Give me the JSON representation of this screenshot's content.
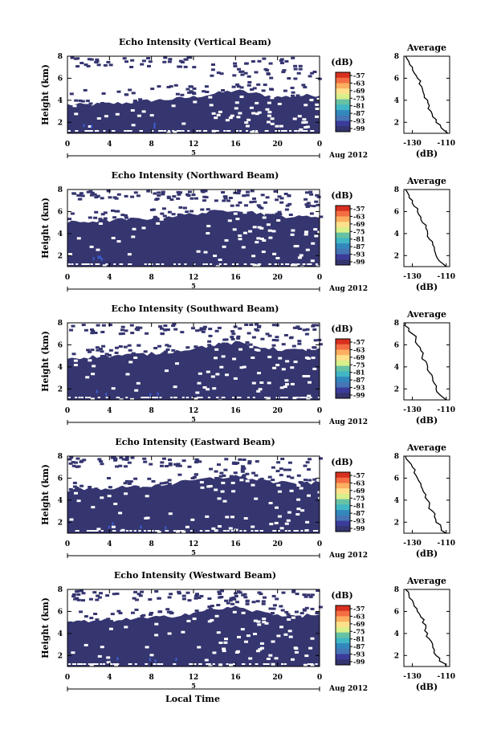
{
  "figure": {
    "x_axis_label": "Local Time",
    "date_label": "Aug 2012",
    "sub_axis_label": "5"
  },
  "colorbar": {
    "unit": "(dB)",
    "ticks": [
      "-57",
      "-63",
      "-69",
      "-75",
      "-81",
      "-87",
      "-93",
      "-99"
    ],
    "colors": [
      "#d7301f",
      "#f46d43",
      "#fdae61",
      "#fee08b",
      "#d9ef8b",
      "#66c2a5",
      "#41b6c4",
      "#3288bd",
      "#4575b4",
      "#3b3b9a",
      "#34346e"
    ]
  },
  "chart_data": [
    {
      "type": "heatmap",
      "title": "Echo Intensity (Vertical Beam)",
      "xlabel": "",
      "ylabel": "Height (km)",
      "xlim": [
        0,
        24
      ],
      "ylim": [
        1,
        8
      ],
      "x_ticks": [
        "0",
        "4",
        "8",
        "12",
        "16",
        "20",
        "0"
      ],
      "y_ticks": [
        "2",
        "4",
        "6",
        "8"
      ],
      "echo_top_km": [
        [
          0,
          3.6
        ],
        [
          2,
          3.6
        ],
        [
          4,
          3.7
        ],
        [
          6,
          3.8
        ],
        [
          8,
          4.0
        ],
        [
          10,
          4.1
        ],
        [
          12,
          4.3
        ],
        [
          14,
          4.6
        ],
        [
          16,
          4.9
        ],
        [
          18,
          4.6
        ],
        [
          20,
          4.3
        ],
        [
          22,
          4.4
        ],
        [
          24,
          4.5
        ]
      ],
      "avg": {
        "title": "Average",
        "xlabel": "(dB)",
        "x_ticks": [
          "-130",
          "-110"
        ],
        "y_ticks": [
          "2",
          "4",
          "6",
          "8"
        ],
        "xlim": [
          -135,
          -108
        ],
        "ylim": [
          1,
          8
        ],
        "height_km": [
          1.0,
          1.5,
          2.0,
          2.5,
          3.0,
          3.5,
          4.0,
          4.5,
          5.0,
          5.5,
          6.0,
          6.5,
          7.0,
          7.5,
          8.0
        ],
        "value_db": [
          -109,
          -113,
          -116,
          -118,
          -119,
          -120,
          -121,
          -123,
          -124,
          -126,
          -127,
          -129,
          -130,
          -132,
          -134
        ]
      }
    },
    {
      "type": "heatmap",
      "title": "Echo Intensity (Northward Beam)",
      "xlabel": "",
      "ylabel": "Height (km)",
      "xlim": [
        0,
        24
      ],
      "ylim": [
        1,
        8
      ],
      "x_ticks": [
        "0",
        "4",
        "8",
        "12",
        "16",
        "20",
        "0"
      ],
      "y_ticks": [
        "2",
        "4",
        "6",
        "8"
      ],
      "echo_top_km": [
        [
          0,
          5.0
        ],
        [
          2,
          5.1
        ],
        [
          4,
          5.2
        ],
        [
          6,
          5.3
        ],
        [
          8,
          5.4
        ],
        [
          10,
          5.6
        ],
        [
          12,
          5.8
        ],
        [
          14,
          6.0
        ],
        [
          16,
          6.2
        ],
        [
          18,
          5.9
        ],
        [
          20,
          5.6
        ],
        [
          22,
          5.5
        ],
        [
          24,
          5.6
        ]
      ],
      "avg": {
        "title": "Average",
        "xlabel": "(dB)",
        "x_ticks": [
          "-130",
          "-110"
        ],
        "y_ticks": [
          "2",
          "4",
          "6",
          "8"
        ],
        "xlim": [
          -135,
          -108
        ],
        "ylim": [
          1,
          8
        ],
        "height_km": [
          1.0,
          1.5,
          2.0,
          2.5,
          3.0,
          3.5,
          4.0,
          4.5,
          5.0,
          5.5,
          6.0,
          6.5,
          7.0,
          7.5,
          8.0
        ],
        "value_db": [
          -110,
          -114,
          -116,
          -117,
          -118,
          -120,
          -121,
          -122,
          -124,
          -125,
          -127,
          -129,
          -130,
          -132,
          -134
        ]
      }
    },
    {
      "type": "heatmap",
      "title": "Echo Intensity (Southward Beam)",
      "xlabel": "",
      "ylabel": "Height (km)",
      "xlim": [
        0,
        24
      ],
      "ylim": [
        1,
        8
      ],
      "x_ticks": [
        "0",
        "4",
        "8",
        "12",
        "16",
        "20",
        "0"
      ],
      "y_ticks": [
        "2",
        "4",
        "6",
        "8"
      ],
      "echo_top_km": [
        [
          0,
          4.8
        ],
        [
          2,
          4.9
        ],
        [
          4,
          5.0
        ],
        [
          6,
          5.1
        ],
        [
          8,
          5.2
        ],
        [
          10,
          5.4
        ],
        [
          12,
          5.7
        ],
        [
          14,
          6.0
        ],
        [
          16,
          6.2
        ],
        [
          18,
          5.9
        ],
        [
          20,
          5.6
        ],
        [
          22,
          5.5
        ],
        [
          24,
          5.6
        ]
      ],
      "avg": {
        "title": "Average",
        "xlabel": "(dB)",
        "x_ticks": [
          "-130",
          "-110"
        ],
        "y_ticks": [
          "2",
          "4",
          "6",
          "8"
        ],
        "xlim": [
          -135,
          -108
        ],
        "ylim": [
          1,
          8
        ],
        "height_km": [
          1.0,
          1.5,
          2.0,
          2.5,
          3.0,
          3.5,
          4.0,
          4.5,
          5.0,
          5.5,
          6.0,
          6.5,
          7.0,
          7.5,
          8.0
        ],
        "value_db": [
          -110,
          -114,
          -116,
          -117,
          -118,
          -120,
          -121,
          -122,
          -124,
          -125,
          -127,
          -128,
          -130,
          -132,
          -134
        ]
      }
    },
    {
      "type": "heatmap",
      "title": "Echo Intensity (Eastward Beam)",
      "xlabel": "",
      "ylabel": "Height (km)",
      "xlim": [
        0,
        24
      ],
      "ylim": [
        1,
        8
      ],
      "x_ticks": [
        "0",
        "4",
        "8",
        "12",
        "16",
        "20",
        "0"
      ],
      "y_ticks": [
        "2",
        "4",
        "6",
        "8"
      ],
      "echo_top_km": [
        [
          0,
          4.9
        ],
        [
          2,
          5.0
        ],
        [
          4,
          5.1
        ],
        [
          6,
          5.2
        ],
        [
          8,
          5.3
        ],
        [
          10,
          5.5
        ],
        [
          12,
          5.8
        ],
        [
          14,
          6.0
        ],
        [
          16,
          6.2
        ],
        [
          18,
          5.9
        ],
        [
          20,
          5.6
        ],
        [
          22,
          5.5
        ],
        [
          24,
          5.6
        ]
      ],
      "avg": {
        "title": "Average",
        "xlabel": "(dB)",
        "x_ticks": [
          "-130",
          "-110"
        ],
        "y_ticks": [
          "2",
          "4",
          "6",
          "8"
        ],
        "xlim": [
          -135,
          -108
        ],
        "ylim": [
          1,
          8
        ],
        "height_km": [
          1.0,
          1.5,
          2.0,
          2.5,
          3.0,
          3.5,
          4.0,
          4.5,
          5.0,
          5.5,
          6.0,
          6.5,
          7.0,
          7.5,
          8.0
        ],
        "value_db": [
          -110,
          -113,
          -116,
          -117,
          -118,
          -120,
          -121,
          -122,
          -124,
          -125,
          -127,
          -129,
          -130,
          -132,
          -134
        ]
      }
    },
    {
      "type": "heatmap",
      "title": "Echo Intensity (Westward Beam)",
      "xlabel": "Local Time",
      "ylabel": "Height (km)",
      "xlim": [
        0,
        24
      ],
      "ylim": [
        1,
        8
      ],
      "x_ticks": [
        "0",
        "4",
        "8",
        "12",
        "16",
        "20",
        "0"
      ],
      "y_ticks": [
        "2",
        "4",
        "6",
        "8"
      ],
      "echo_top_km": [
        [
          0,
          5.0
        ],
        [
          2,
          5.1
        ],
        [
          4,
          5.2
        ],
        [
          6,
          5.3
        ],
        [
          8,
          5.4
        ],
        [
          10,
          5.6
        ],
        [
          12,
          5.9
        ],
        [
          14,
          6.2
        ],
        [
          16,
          6.4
        ],
        [
          18,
          6.0
        ],
        [
          20,
          5.7
        ],
        [
          22,
          5.6
        ],
        [
          24,
          5.7
        ]
      ],
      "avg": {
        "title": "Average",
        "xlabel": "(dB)",
        "x_ticks": [
          "-130",
          "-110"
        ],
        "y_ticks": [
          "2",
          "4",
          "6",
          "8"
        ],
        "xlim": [
          -135,
          -108
        ],
        "ylim": [
          1,
          8
        ],
        "height_km": [
          1.0,
          1.5,
          2.0,
          2.5,
          3.0,
          3.5,
          4.0,
          4.5,
          5.0,
          5.5,
          6.0,
          6.5,
          7.0,
          7.5,
          8.0
        ],
        "value_db": [
          -110,
          -114,
          -116,
          -117,
          -118,
          -120,
          -121,
          -122,
          -124,
          -125,
          -127,
          -129,
          -130,
          -132,
          -134
        ]
      }
    }
  ]
}
